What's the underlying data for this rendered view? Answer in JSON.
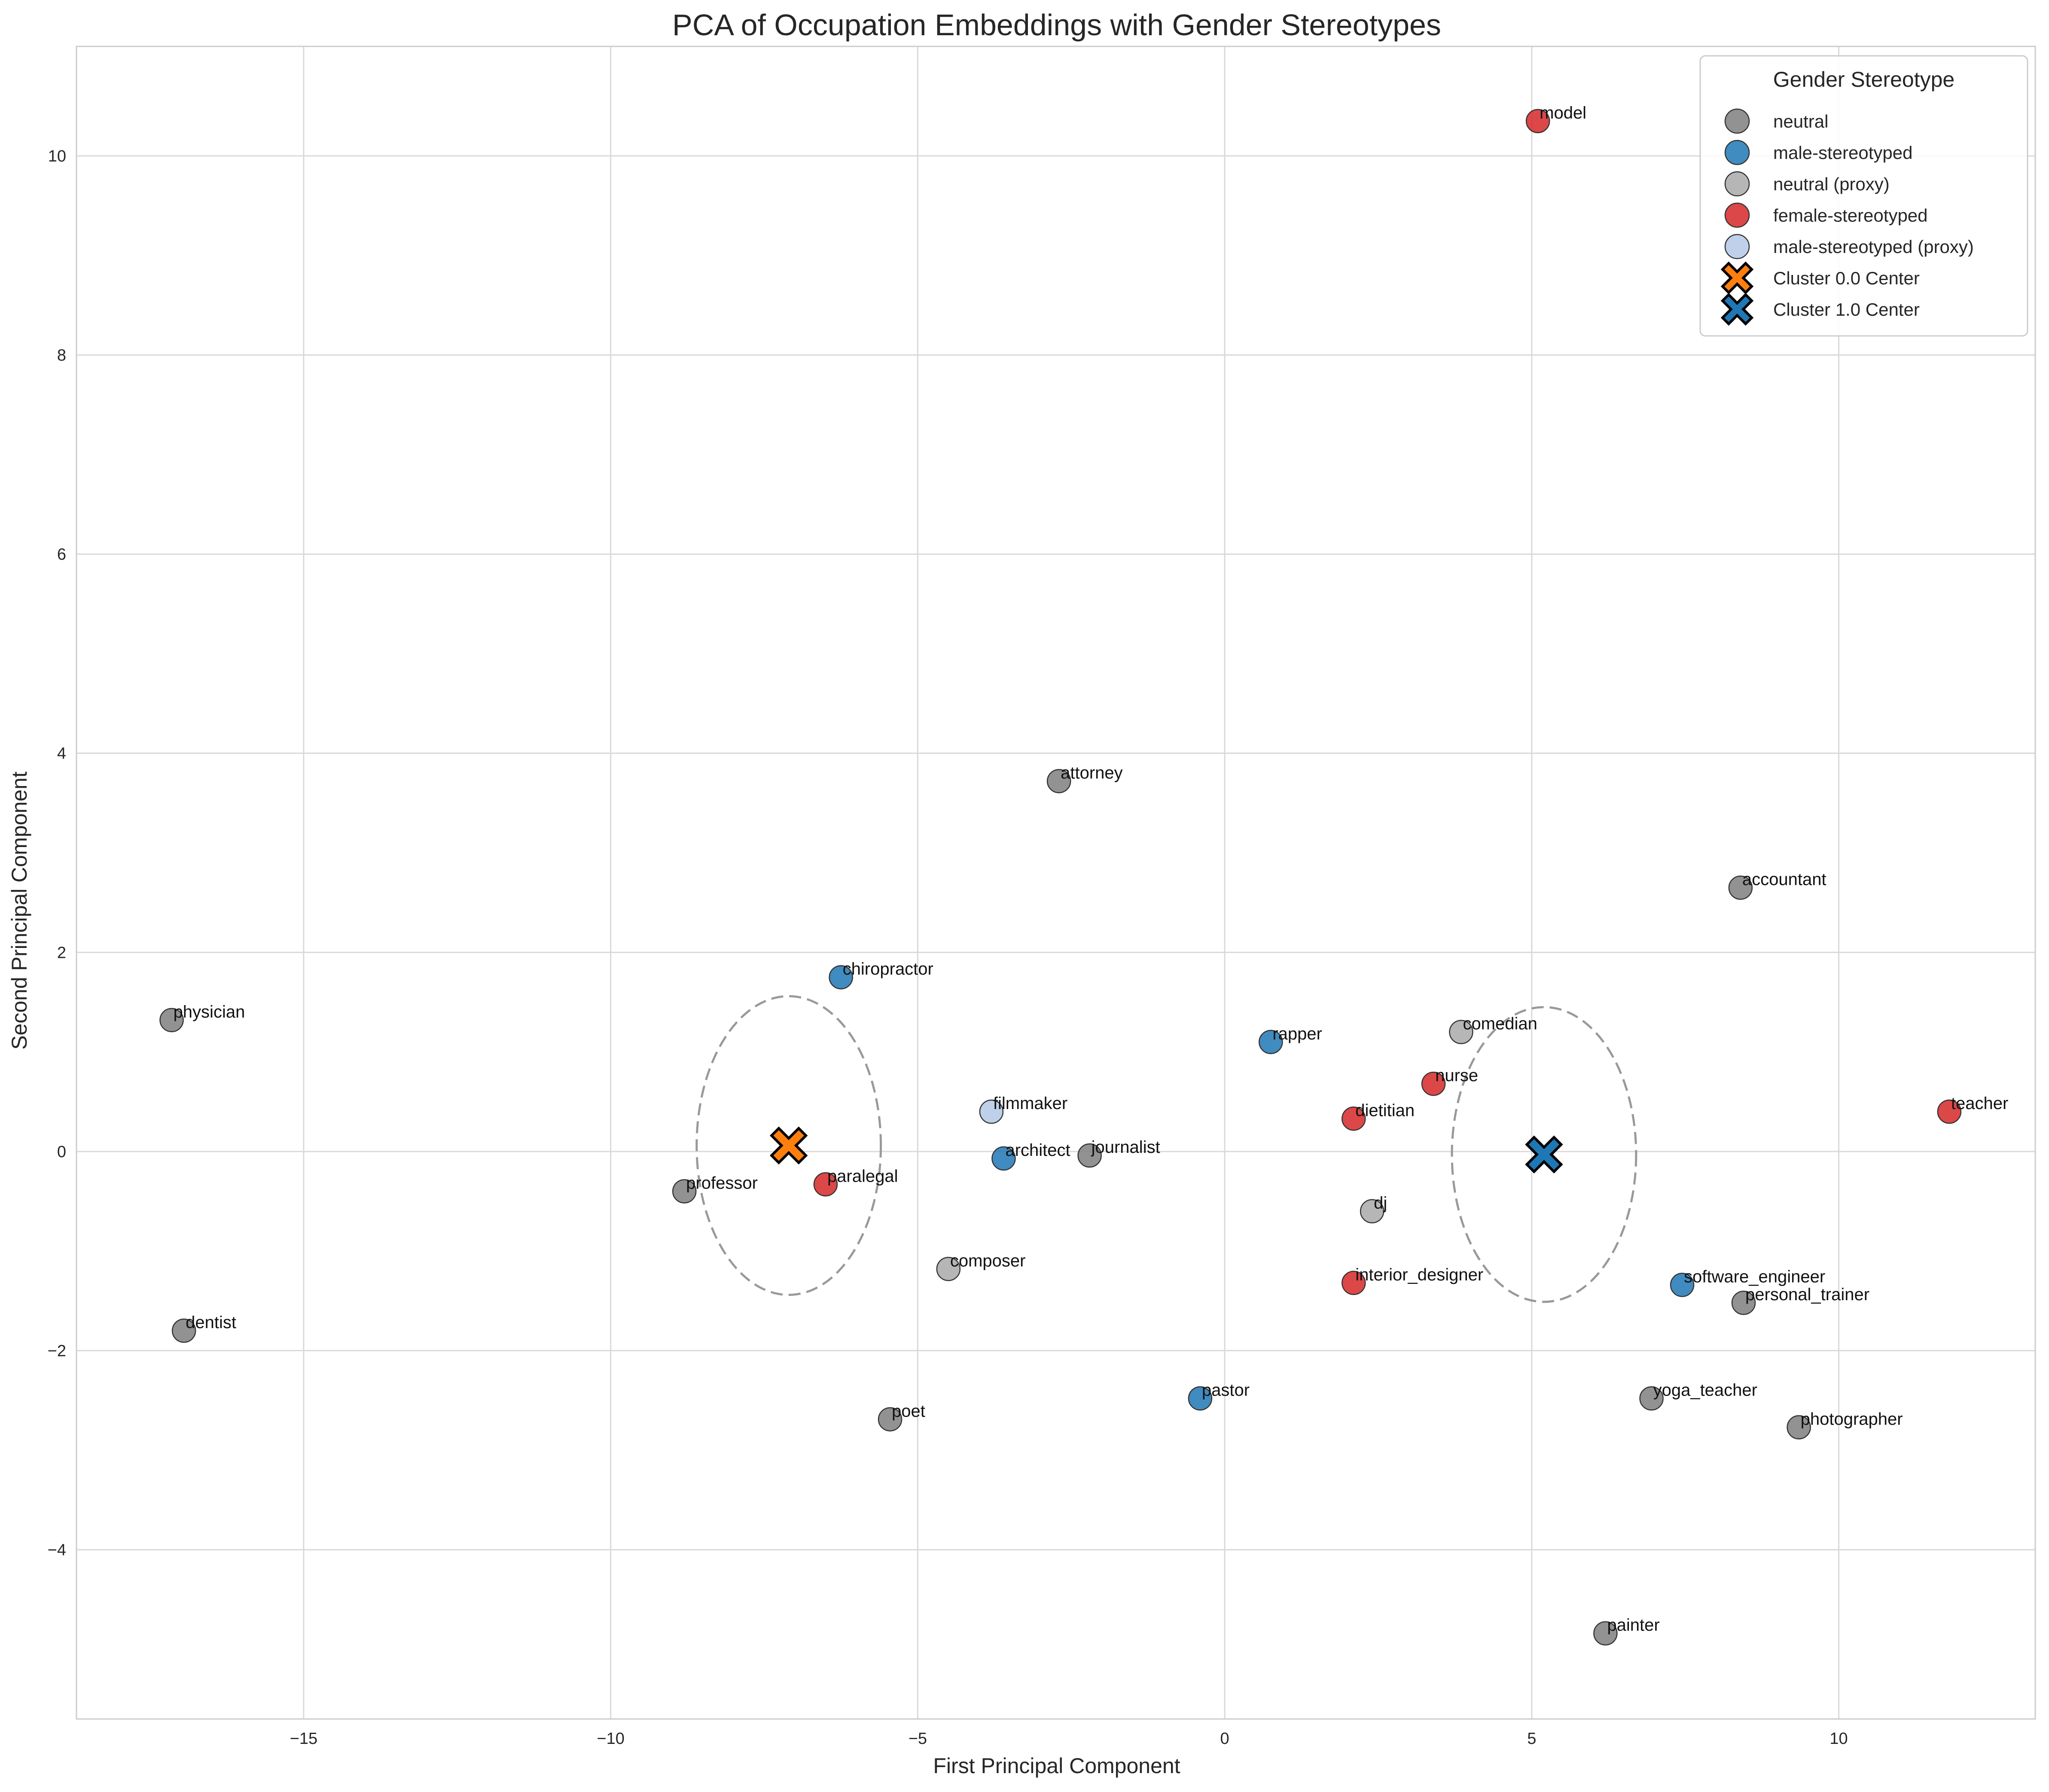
{
  "chart_data": {
    "type": "scatter",
    "title": "PCA of Occupation Embeddings with Gender Stereotypes",
    "xlabel": "First Principal Component",
    "ylabel": "Second Principal Component",
    "xlim": [
      -18.7,
      13.2
    ],
    "ylim": [
      -5.7,
      11.1
    ],
    "x_ticks": [
      -15,
      -10,
      -5,
      0,
      5,
      10
    ],
    "x_tick_labels": [
      "−15",
      "−10",
      "−5",
      "0",
      "5",
      "10"
    ],
    "y_ticks": [
      -4,
      -2,
      0,
      2,
      4,
      6,
      8,
      10
    ],
    "y_tick_labels": [
      "−4",
      "−2",
      "0",
      "2",
      "4",
      "6",
      "8",
      "10"
    ],
    "grid": true,
    "legend": {
      "title": "Gender Stereotype",
      "placement": "top-right",
      "entries": [
        {
          "label": "neutral",
          "marker": "circle",
          "color": "#7f7f7f"
        },
        {
          "label": "male-stereotyped",
          "marker": "circle",
          "color": "#1f77b4"
        },
        {
          "label": "neutral (proxy)",
          "marker": "circle",
          "color": "#a9a9a9"
        },
        {
          "label": "female-stereotyped",
          "marker": "circle",
          "color": "#d62728"
        },
        {
          "label": "male-stereotyped (proxy)",
          "marker": "circle",
          "color": "#b3c8e6"
        },
        {
          "label": "Cluster 0.0 Center",
          "marker": "x",
          "color": "#ff7f0e"
        },
        {
          "label": "Cluster 1.0 Center",
          "marker": "x",
          "color": "#1f77b4"
        }
      ]
    },
    "colors": {
      "neutral": "#7f7f7f",
      "male-stereotyped": "#1f77b4",
      "neutral (proxy)": "#a9a9a9",
      "female-stereotyped": "#d62728",
      "male-stereotyped (proxy)": "#b3c8e6"
    },
    "points": [
      {
        "label": "model",
        "x": 5.1,
        "y": 10.35,
        "group": "female-stereotyped"
      },
      {
        "label": "attorney",
        "x": -2.7,
        "y": 3.72,
        "group": "neutral"
      },
      {
        "label": "accountant",
        "x": 8.4,
        "y": 2.65,
        "group": "neutral"
      },
      {
        "label": "chiropractor",
        "x": -6.25,
        "y": 1.75,
        "group": "male-stereotyped"
      },
      {
        "label": "physician",
        "x": -17.15,
        "y": 1.32,
        "group": "neutral"
      },
      {
        "label": "rapper",
        "x": 0.75,
        "y": 1.1,
        "group": "male-stereotyped"
      },
      {
        "label": "comedian",
        "x": 3.85,
        "y": 1.2,
        "group": "neutral (proxy)"
      },
      {
        "label": "nurse",
        "x": 3.4,
        "y": 0.68,
        "group": "female-stereotyped"
      },
      {
        "label": "teacher",
        "x": 11.8,
        "y": 0.4,
        "group": "female-stereotyped"
      },
      {
        "label": "filmmaker",
        "x": -3.8,
        "y": 0.4,
        "group": "male-stereotyped (proxy)"
      },
      {
        "label": "dietitian",
        "x": 2.1,
        "y": 0.33,
        "group": "female-stereotyped"
      },
      {
        "label": "architect",
        "x": -3.6,
        "y": -0.07,
        "group": "male-stereotyped"
      },
      {
        "label": "journalist",
        "x": -2.2,
        "y": -0.04,
        "group": "neutral"
      },
      {
        "label": "paralegal",
        "x": -6.5,
        "y": -0.33,
        "group": "female-stereotyped"
      },
      {
        "label": "professor",
        "x": -8.8,
        "y": -0.4,
        "group": "neutral"
      },
      {
        "label": "dj",
        "x": 2.4,
        "y": -0.6,
        "group": "neutral (proxy)"
      },
      {
        "label": "composer",
        "x": -4.5,
        "y": -1.18,
        "group": "neutral (proxy)"
      },
      {
        "label": "interior_designer",
        "x": 2.1,
        "y": -1.32,
        "group": "female-stereotyped"
      },
      {
        "label": "software_engineer",
        "x": 7.45,
        "y": -1.34,
        "group": "male-stereotyped"
      },
      {
        "label": "personal_trainer",
        "x": 8.45,
        "y": -1.52,
        "group": "neutral"
      },
      {
        "label": "dentist",
        "x": -16.95,
        "y": -1.8,
        "group": "neutral"
      },
      {
        "label": "pastor",
        "x": -0.4,
        "y": -2.48,
        "group": "male-stereotyped"
      },
      {
        "label": "yoga_teacher",
        "x": 6.95,
        "y": -2.48,
        "group": "neutral"
      },
      {
        "label": "poet",
        "x": -5.45,
        "y": -2.69,
        "group": "neutral"
      },
      {
        "label": "photographer",
        "x": 9.35,
        "y": -2.77,
        "group": "neutral"
      },
      {
        "label": "painter",
        "x": 6.2,
        "y": -4.84,
        "group": "neutral"
      }
    ],
    "clusters": [
      {
        "name": "Cluster 0.0 Center",
        "x": -7.1,
        "y": 0.06,
        "color": "#ff7f0e",
        "ellipse": {
          "rx": 1.5,
          "ry": 1.5
        }
      },
      {
        "name": "Cluster 1.0 Center",
        "x": 5.2,
        "y": -0.03,
        "color": "#1f77b4",
        "ellipse": {
          "rx": 1.5,
          "ry": 1.48
        }
      }
    ]
  }
}
